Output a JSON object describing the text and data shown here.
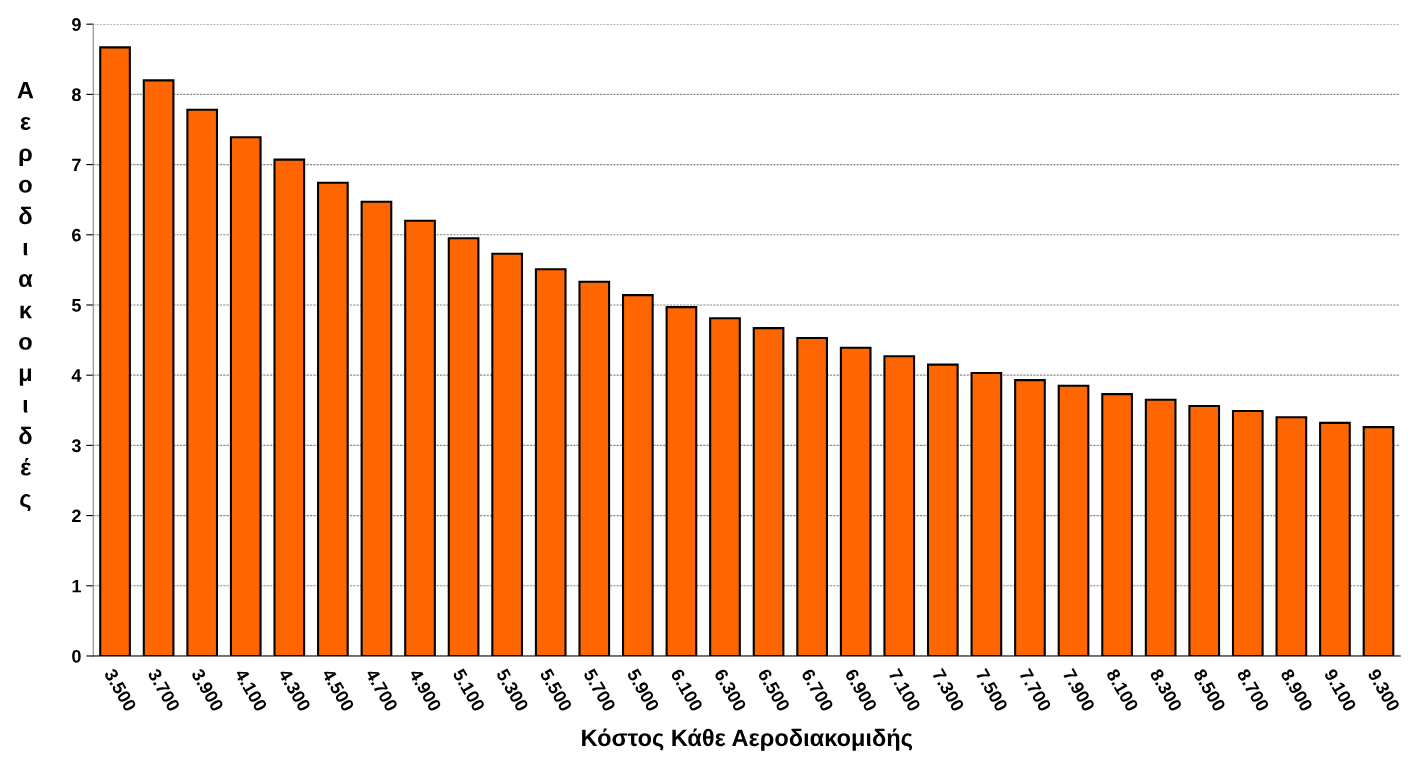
{
  "chart_data": {
    "type": "bar",
    "xlabel": "Κόστος Κάθε Αεροδιακομιδής",
    "ylabel": "Αεροδιακομιδές",
    "categories": [
      "3.500",
      "3.700",
      "3.900",
      "4.100",
      "4.300",
      "4.500",
      "4.700",
      "4.900",
      "5.100",
      "5.300",
      "5.500",
      "5.700",
      "5.900",
      "6.100",
      "6.300",
      "6.500",
      "6.700",
      "6.900",
      "7.100",
      "7.300",
      "7.500",
      "7.700",
      "7.900",
      "8.100",
      "8.300",
      "8.500",
      "8.700",
      "8.900",
      "9.100",
      "9.300"
    ],
    "values": [
      8.67,
      8.2,
      7.78,
      7.39,
      7.07,
      6.74,
      6.47,
      6.2,
      5.95,
      5.73,
      5.51,
      5.33,
      5.14,
      4.97,
      4.81,
      4.67,
      4.53,
      4.39,
      4.27,
      4.15,
      4.03,
      3.93,
      3.85,
      3.73,
      3.65,
      3.56,
      3.49,
      3.4,
      3.32,
      3.26
    ],
    "color": "#ff6600",
    "ylim": [
      0,
      9
    ],
    "yticks": [
      0,
      1,
      2,
      3,
      4,
      5,
      6,
      7,
      8,
      9
    ],
    "grid": "y"
  }
}
